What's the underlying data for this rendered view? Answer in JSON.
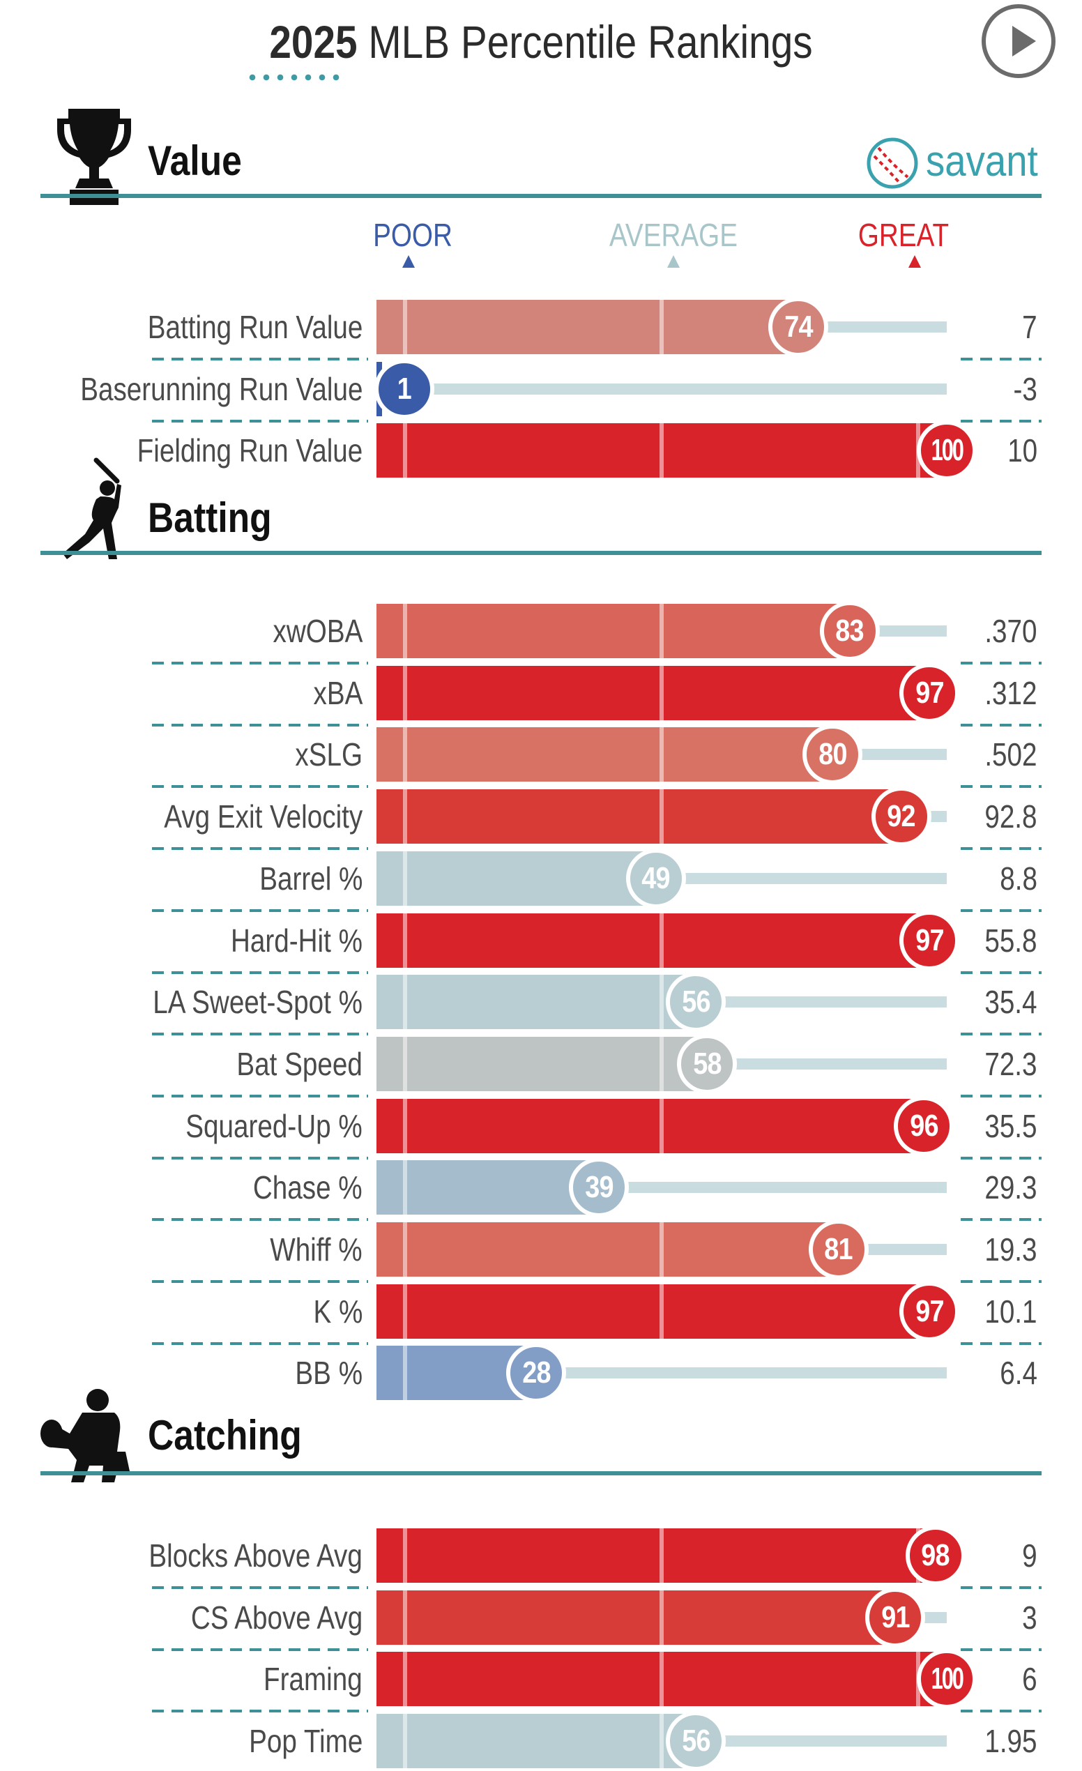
{
  "header": {
    "title_year": "2025",
    "title_rest": "MLB Percentile Rankings",
    "play_icon": "play-circle-icon"
  },
  "brand": {
    "label": "savant",
    "icon": "baseball-icon",
    "color": "#3aa2ae"
  },
  "scale": {
    "poor": "POOR",
    "average": "AVERAGE",
    "great": "GREAT",
    "poor_color": "#3a5ba8",
    "average_color": "#a8c6c9",
    "great_color": "#d8232a"
  },
  "colors": {
    "rule": "#3e8f96",
    "track": "#c9dde0"
  },
  "chart_data": {
    "type": "bar",
    "title": "2025 MLB Percentile Rankings",
    "xlim": [
      0,
      100
    ],
    "sections": [
      {
        "name": "Value",
        "icon": "trophy-icon",
        "metrics": [
          {
            "label": "Batting Run Value",
            "percentile": 74,
            "value": "7",
            "color": "#d2847a"
          },
          {
            "label": "Baserunning Run Value",
            "percentile": 1,
            "value": "-3",
            "color": "#3a5ba8"
          },
          {
            "label": "Fielding Run Value",
            "percentile": 100,
            "value": "10",
            "color": "#d8232a"
          }
        ]
      },
      {
        "name": "Batting",
        "icon": "batter-icon",
        "metrics": [
          {
            "label": "xwOBA",
            "percentile": 83,
            "value": ".370",
            "color": "#d8645a"
          },
          {
            "label": "xBA",
            "percentile": 97,
            "value": ".312",
            "color": "#d8232a"
          },
          {
            "label": "xSLG",
            "percentile": 80,
            "value": ".502",
            "color": "#d87265"
          },
          {
            "label": "Avg Exit Velocity",
            "percentile": 92,
            "value": "92.8",
            "color": "#d83a36"
          },
          {
            "label": "Barrel %",
            "percentile": 49,
            "value": "8.8",
            "color": "#b8ced2"
          },
          {
            "label": "Hard-Hit %",
            "percentile": 97,
            "value": "55.8",
            "color": "#d8232a"
          },
          {
            "label": "LA Sweet-Spot %",
            "percentile": 56,
            "value": "35.4",
            "color": "#b8ced2"
          },
          {
            "label": "Bat Speed",
            "percentile": 58,
            "value": "72.3",
            "color": "#bec3c3"
          },
          {
            "label": "Squared-Up %",
            "percentile": 96,
            "value": "35.5",
            "color": "#d8232a"
          },
          {
            "label": "Chase %",
            "percentile": 39,
            "value": "29.3",
            "color": "#a4bccc"
          },
          {
            "label": "Whiff %",
            "percentile": 81,
            "value": "19.3",
            "color": "#d86a5e"
          },
          {
            "label": "K %",
            "percentile": 97,
            "value": "10.1",
            "color": "#d8232a"
          },
          {
            "label": "BB %",
            "percentile": 28,
            "value": "6.4",
            "color": "#829ec6"
          }
        ]
      },
      {
        "name": "Catching",
        "icon": "catcher-icon",
        "metrics": [
          {
            "label": "Blocks Above Avg",
            "percentile": 98,
            "value": "9",
            "color": "#d8232a"
          },
          {
            "label": "CS Above Avg",
            "percentile": 91,
            "value": "3",
            "color": "#d83c38"
          },
          {
            "label": "Framing",
            "percentile": 100,
            "value": "6",
            "color": "#d8232a"
          },
          {
            "label": "Pop Time",
            "percentile": 56,
            "value": "1.95",
            "color": "#b8ced2"
          }
        ]
      }
    ]
  }
}
